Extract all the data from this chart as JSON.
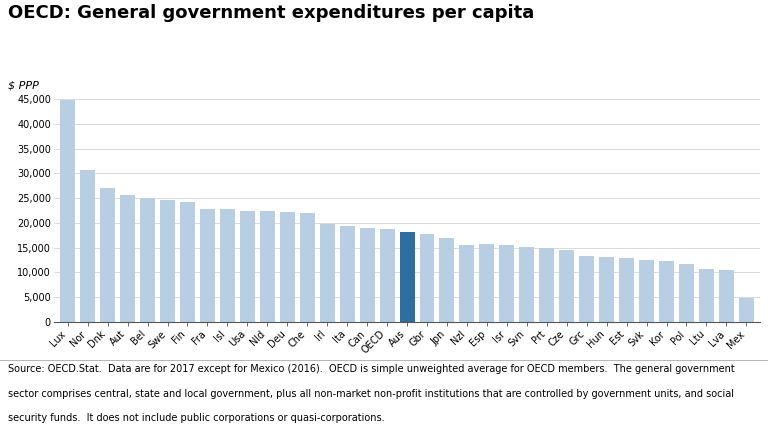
{
  "title": "OECD: General government expenditures per capita",
  "ylabel": "$ PPP",
  "categories": [
    "Lux",
    "Nor",
    "Dnk",
    "Aut",
    "Bel",
    "Swe",
    "Fin",
    "Fra",
    "Isl",
    "Usa",
    "Nld",
    "Deu",
    "Che",
    "Irl",
    "Ita",
    "Can",
    "OECD",
    "Aus",
    "Gbr",
    "Jpn",
    "Nzl",
    "Esp",
    "Isr",
    "Svn",
    "Prt",
    "Cze",
    "Grc",
    "Hun",
    "Est",
    "Svk",
    "Kor",
    "Pol",
    "Ltu",
    "Lva",
    "Mex"
  ],
  "values": [
    44800,
    30800,
    27000,
    25700,
    25000,
    24600,
    24300,
    22900,
    22800,
    22500,
    22400,
    22300,
    22100,
    19800,
    19400,
    18900,
    18800,
    18200,
    17700,
    16900,
    15600,
    15700,
    15600,
    15100,
    15000,
    14600,
    13300,
    13200,
    12900,
    12600,
    12400,
    11700,
    10600,
    10400,
    4900
  ],
  "bar_color_default": "#b8cfe3",
  "bar_color_highlight": "#2e6fa3",
  "highlight_index": 17,
  "ylim": [
    0,
    47000
  ],
  "yticks": [
    0,
    5000,
    10000,
    15000,
    20000,
    25000,
    30000,
    35000,
    40000,
    45000
  ],
  "footnote_line1": "Source: OECD.Stat.  Data are for 2017 except for Mexico (2016).  OECD is simple unweighted average for OECD members.  The general government",
  "footnote_line2": "sector comprises central, state and local government, plus all non-market non-profit institutions that are controlled by government units, and social",
  "footnote_line3": "security funds.  It does not include public corporations or quasi-corporations.",
  "title_fontsize": 13,
  "label_fontsize": 7,
  "ylabel_fontsize": 8,
  "footnote_fontsize": 7,
  "background_color": "#ffffff"
}
